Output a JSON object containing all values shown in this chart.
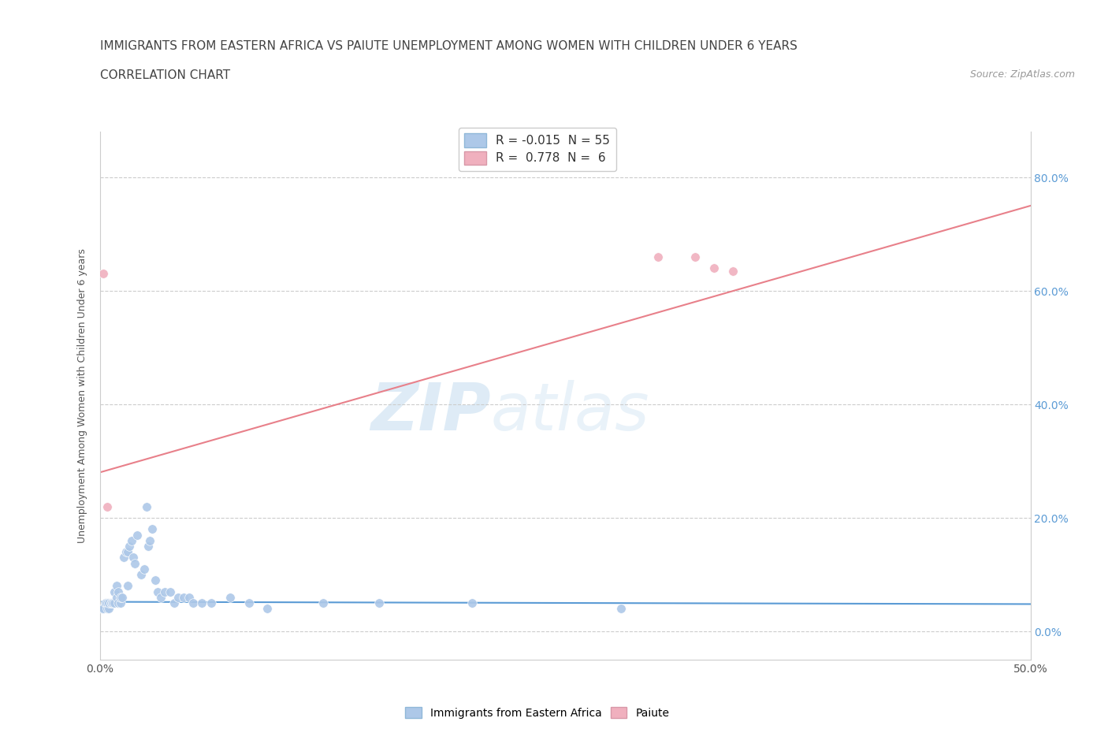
{
  "title_line1": "IMMIGRANTS FROM EASTERN AFRICA VS PAIUTE UNEMPLOYMENT AMONG WOMEN WITH CHILDREN UNDER 6 YEARS",
  "title_line2": "CORRELATION CHART",
  "source_text": "Source: ZipAtlas.com",
  "ylabel": "Unemployment Among Women with Children Under 6 years",
  "xlim": [
    0.0,
    0.5
  ],
  "ylim": [
    -0.05,
    0.88
  ],
  "yticks": [
    0.0,
    0.2,
    0.4,
    0.6,
    0.8
  ],
  "xticks": [
    0.0,
    0.1,
    0.2,
    0.3,
    0.4,
    0.5
  ],
  "xtick_labels": [
    "0.0%",
    "",
    "",
    "",
    "",
    "50.0%"
  ],
  "watermark_zip": "ZIP",
  "watermark_atlas": "atlas",
  "legend_r1": "R = -0.015  N = 55",
  "legend_r2": "R =  0.778  N =  6",
  "blue_scatter_x": [
    0.001,
    0.002,
    0.003,
    0.003,
    0.004,
    0.004,
    0.005,
    0.005,
    0.006,
    0.006,
    0.007,
    0.007,
    0.008,
    0.008,
    0.009,
    0.009,
    0.01,
    0.01,
    0.011,
    0.011,
    0.012,
    0.013,
    0.014,
    0.015,
    0.015,
    0.016,
    0.017,
    0.018,
    0.019,
    0.02,
    0.022,
    0.024,
    0.025,
    0.026,
    0.027,
    0.028,
    0.03,
    0.031,
    0.033,
    0.035,
    0.038,
    0.04,
    0.042,
    0.045,
    0.048,
    0.05,
    0.055,
    0.06,
    0.07,
    0.08,
    0.09,
    0.12,
    0.15,
    0.2,
    0.28
  ],
  "blue_scatter_y": [
    0.04,
    0.04,
    0.05,
    0.05,
    0.04,
    0.05,
    0.04,
    0.05,
    0.05,
    0.05,
    0.05,
    0.05,
    0.05,
    0.07,
    0.06,
    0.08,
    0.05,
    0.07,
    0.05,
    0.06,
    0.06,
    0.13,
    0.14,
    0.08,
    0.14,
    0.15,
    0.16,
    0.13,
    0.12,
    0.17,
    0.1,
    0.11,
    0.22,
    0.15,
    0.16,
    0.18,
    0.09,
    0.07,
    0.06,
    0.07,
    0.07,
    0.05,
    0.06,
    0.06,
    0.06,
    0.05,
    0.05,
    0.05,
    0.06,
    0.05,
    0.04,
    0.05,
    0.05,
    0.05,
    0.04
  ],
  "pink_scatter_x": [
    0.002,
    0.004,
    0.3,
    0.32,
    0.33,
    0.34
  ],
  "pink_scatter_y": [
    0.63,
    0.22,
    0.66,
    0.66,
    0.64,
    0.635
  ],
  "blue_line_x": [
    0.0,
    0.5
  ],
  "blue_line_y": [
    0.052,
    0.048
  ],
  "pink_line_x": [
    0.0,
    0.5
  ],
  "pink_line_y": [
    0.28,
    0.75
  ],
  "blue_line_color": "#5b9bd5",
  "pink_line_color": "#e8808a",
  "blue_scatter_color": "#adc8e8",
  "pink_scatter_color": "#f0b0be",
  "dashed_line_color": "#cccccc",
  "right_tick_color": "#5b9bd5",
  "background_color": "#ffffff",
  "title_fontsize": 11,
  "axis_label_fontsize": 9,
  "tick_fontsize": 10,
  "legend_fontsize": 11
}
